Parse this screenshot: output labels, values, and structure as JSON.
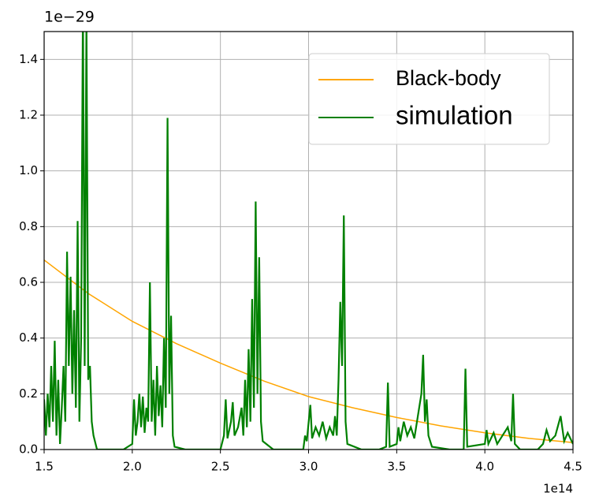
{
  "chart_data": {
    "type": "line",
    "y_offset_label": "1e−29",
    "x_offset_label": "1e14",
    "xlim": [
      1.5,
      4.5
    ],
    "ylim": [
      0,
      1.5
    ],
    "xticks": [
      1.5,
      {
        "value": 2,
        "label": "2.0"
      },
      2.5,
      {
        "value": 3,
        "label": "3.0"
      },
      3.5,
      {
        "value": 4,
        "label": "4.0"
      },
      4.5
    ],
    "yticks": [
      {
        "value": 0,
        "label": "0.0"
      },
      0.2,
      0.4,
      0.6,
      0.8,
      {
        "value": 1,
        "label": "1.0"
      },
      1.2,
      1.4
    ],
    "grid": true,
    "legend": "upper right",
    "series": [
      {
        "name": "Black-body",
        "color": "#ffa500",
        "x": [
          1.5,
          1.75,
          2.0,
          2.25,
          2.5,
          2.75,
          3.0,
          3.25,
          3.5,
          3.75,
          4.0,
          4.25,
          4.5
        ],
        "values": [
          0.68,
          0.56,
          0.46,
          0.38,
          0.31,
          0.245,
          0.19,
          0.15,
          0.115,
          0.085,
          0.06,
          0.04,
          0.025
        ]
      },
      {
        "name": "simulation",
        "color": "#008000",
        "x": [
          1.5,
          1.51,
          1.52,
          1.53,
          1.54,
          1.55,
          1.56,
          1.57,
          1.58,
          1.59,
          1.6,
          1.61,
          1.62,
          1.63,
          1.64,
          1.65,
          1.66,
          1.67,
          1.68,
          1.69,
          1.7,
          1.71,
          1.72,
          1.73,
          1.74,
          1.75,
          1.76,
          1.77,
          1.78,
          1.8,
          1.85,
          1.9,
          1.95,
          2.0,
          2.01,
          2.02,
          2.03,
          2.04,
          2.05,
          2.06,
          2.07,
          2.08,
          2.09,
          2.1,
          2.11,
          2.12,
          2.13,
          2.14,
          2.15,
          2.16,
          2.17,
          2.18,
          2.19,
          2.2,
          2.21,
          2.22,
          2.23,
          2.24,
          2.3,
          2.4,
          2.5,
          2.52,
          2.53,
          2.54,
          2.56,
          2.57,
          2.58,
          2.6,
          2.62,
          2.63,
          2.64,
          2.65,
          2.66,
          2.67,
          2.68,
          2.69,
          2.7,
          2.71,
          2.72,
          2.73,
          2.74,
          2.8,
          2.9,
          2.97,
          2.98,
          2.99,
          3.01,
          3.02,
          3.04,
          3.06,
          3.08,
          3.1,
          3.12,
          3.14,
          3.15,
          3.16,
          3.17,
          3.18,
          3.19,
          3.2,
          3.21,
          3.22,
          3.3,
          3.4,
          3.44,
          3.45,
          3.46,
          3.5,
          3.51,
          3.52,
          3.54,
          3.56,
          3.58,
          3.6,
          3.62,
          3.64,
          3.65,
          3.66,
          3.67,
          3.68,
          3.7,
          3.8,
          3.88,
          3.89,
          3.9,
          4.0,
          4.01,
          4.02,
          4.05,
          4.07,
          4.1,
          4.13,
          4.15,
          4.16,
          4.17,
          4.2,
          4.3,
          4.33,
          4.35,
          4.37,
          4.4,
          4.43,
          4.45,
          4.47,
          4.5
        ],
        "values": [
          0.18,
          0.05,
          0.2,
          0.08,
          0.3,
          0.1,
          0.39,
          0.05,
          0.25,
          0.02,
          0.15,
          0.3,
          0.1,
          0.71,
          0.3,
          0.62,
          0.2,
          0.5,
          0.15,
          0.82,
          0.1,
          0.4,
          1.6,
          0.3,
          1.55,
          0.25,
          0.3,
          0.1,
          0.05,
          0,
          0,
          0,
          0,
          0.02,
          0.18,
          0.05,
          0.1,
          0.2,
          0.08,
          0.19,
          0.06,
          0.15,
          0.1,
          0.6,
          0.1,
          0.25,
          0.05,
          0.3,
          0.12,
          0.23,
          0.08,
          0.4,
          0.15,
          1.19,
          0.2,
          0.48,
          0.05,
          0.01,
          0,
          0,
          0,
          0.05,
          0.18,
          0.04,
          0.1,
          0.17,
          0.05,
          0.08,
          0.15,
          0.05,
          0.25,
          0.08,
          0.36,
          0.1,
          0.54,
          0.15,
          0.89,
          0.2,
          0.69,
          0.1,
          0.03,
          0,
          0,
          0,
          0.05,
          0.03,
          0.16,
          0.04,
          0.08,
          0.05,
          0.1,
          0.04,
          0.08,
          0.05,
          0.12,
          0.05,
          0.25,
          0.53,
          0.3,
          0.84,
          0.1,
          0.02,
          0,
          0,
          0.01,
          0.24,
          0.01,
          0.02,
          0.08,
          0.03,
          0.1,
          0.05,
          0.08,
          0.04,
          0.12,
          0.2,
          0.34,
          0.1,
          0.18,
          0.05,
          0.01,
          0,
          0,
          0.29,
          0.01,
          0.02,
          0.07,
          0.02,
          0.06,
          0.02,
          0.05,
          0.08,
          0.03,
          0.2,
          0.02,
          0,
          0,
          0.02,
          0.07,
          0.03,
          0.05,
          0.12,
          0.03,
          0.06,
          0.02
        ]
      }
    ]
  }
}
